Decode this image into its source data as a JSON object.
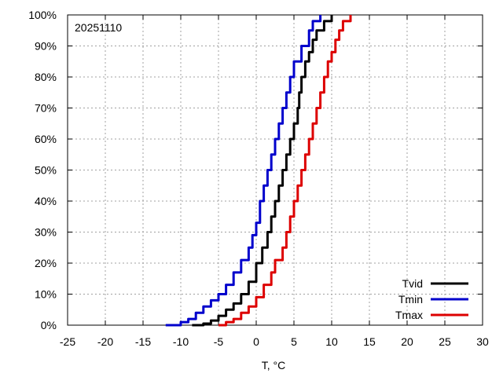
{
  "chart_data": {
    "type": "line",
    "annotation": "20251110",
    "xlabel": "T, °C",
    "ylabel": "",
    "xlim": [
      -25,
      30
    ],
    "ylim": [
      0,
      100
    ],
    "x_ticks": [
      -25,
      -20,
      -15,
      -10,
      -5,
      0,
      5,
      10,
      15,
      20,
      25,
      30
    ],
    "y_ticks": [
      0,
      10,
      20,
      30,
      40,
      50,
      60,
      70,
      80,
      90,
      100
    ],
    "y_tick_format": "percent",
    "grid": true,
    "legend_position": "bottom-right",
    "series": [
      {
        "name": "Tvid",
        "color": "#000000",
        "points": [
          [
            -8.5,
            0
          ],
          [
            -7,
            0.5
          ],
          [
            -6,
            1.5
          ],
          [
            -5,
            3
          ],
          [
            -4,
            5
          ],
          [
            -3,
            7
          ],
          [
            -2,
            10
          ],
          [
            -1,
            14
          ],
          [
            0,
            20
          ],
          [
            0.8,
            25
          ],
          [
            1.5,
            30
          ],
          [
            2,
            35
          ],
          [
            2.5,
            40
          ],
          [
            3,
            45
          ],
          [
            3.5,
            50
          ],
          [
            4,
            55
          ],
          [
            4.5,
            60
          ],
          [
            5,
            65
          ],
          [
            5.5,
            70
          ],
          [
            5.7,
            75
          ],
          [
            6,
            80
          ],
          [
            6.5,
            85
          ],
          [
            7,
            88
          ],
          [
            7.5,
            92
          ],
          [
            8,
            95
          ],
          [
            9,
            98
          ],
          [
            10,
            100
          ]
        ]
      },
      {
        "name": "Tmin",
        "color": "#0000cc",
        "points": [
          [
            -12,
            0
          ],
          [
            -10,
            1
          ],
          [
            -9,
            2
          ],
          [
            -8,
            4
          ],
          [
            -7,
            6
          ],
          [
            -6,
            8
          ],
          [
            -5,
            10
          ],
          [
            -4,
            13
          ],
          [
            -3,
            17
          ],
          [
            -2,
            21
          ],
          [
            -1,
            25
          ],
          [
            -0.5,
            29
          ],
          [
            0,
            33
          ],
          [
            0.5,
            40
          ],
          [
            1,
            45
          ],
          [
            1.5,
            50
          ],
          [
            2,
            55
          ],
          [
            2.5,
            60
          ],
          [
            3,
            65
          ],
          [
            3.5,
            70
          ],
          [
            4,
            75
          ],
          [
            4.5,
            80
          ],
          [
            5,
            85
          ],
          [
            6,
            90
          ],
          [
            7,
            95
          ],
          [
            7.5,
            98
          ],
          [
            8.5,
            100
          ]
        ]
      },
      {
        "name": "Tmax",
        "color": "#dd0000",
        "points": [
          [
            -5,
            0
          ],
          [
            -4,
            1
          ],
          [
            -3,
            2
          ],
          [
            -2,
            4
          ],
          [
            -1,
            6
          ],
          [
            0,
            9
          ],
          [
            1,
            13
          ],
          [
            2,
            17
          ],
          [
            2.5,
            21
          ],
          [
            3.5,
            25
          ],
          [
            4,
            30
          ],
          [
            4.5,
            35
          ],
          [
            5,
            40
          ],
          [
            5.5,
            45
          ],
          [
            6,
            50
          ],
          [
            6.5,
            55
          ],
          [
            7,
            60
          ],
          [
            7.5,
            65
          ],
          [
            8,
            70
          ],
          [
            8.5,
            75
          ],
          [
            9,
            80
          ],
          [
            9.5,
            85
          ],
          [
            10,
            88
          ],
          [
            10.5,
            92
          ],
          [
            11,
            95
          ],
          [
            11.5,
            98
          ],
          [
            12.5,
            100
          ]
        ]
      }
    ]
  }
}
